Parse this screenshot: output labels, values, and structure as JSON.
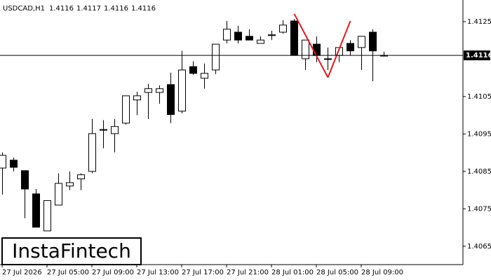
{
  "chart_data": {
    "type": "candlestick",
    "title": "USDCAD,H1",
    "categories": [
      "27 Jul 2026",
      null,
      null,
      null,
      "27 Jul 05:00",
      null,
      null,
      null,
      "27 Jul 09:00",
      null,
      null,
      null,
      "27 Jul 13:00",
      null,
      null,
      null,
      "27 Jul 17:00",
      null,
      null,
      null,
      "27 Jul 21:00",
      null,
      null,
      null,
      "28 Jul 01:00",
      null,
      null,
      null,
      "28 Jul 05:00",
      null,
      null,
      null,
      "28 Jul 09:00",
      null,
      null
    ],
    "series": {
      "open": [
        1.40859,
        1.4088,
        1.40852,
        1.4079,
        1.40691,
        1.4076,
        1.40811,
        1.4083,
        1.4085,
        1.4096,
        1.40951,
        1.40979,
        1.41041,
        1.41061,
        1.41061,
        1.41082,
        1.41011,
        1.4113,
        1.41099,
        1.41121,
        1.41201,
        1.41222,
        1.41211,
        1.41192,
        1.41213,
        1.41222,
        1.41252,
        1.41151,
        1.4119,
        1.41151,
        1.4116,
        1.41192,
        1.41181,
        1.41222,
        1.4116
      ],
      "high": [
        1.40901,
        1.40887,
        1.40852,
        1.40803,
        1.40772,
        1.40845,
        1.4085,
        1.40845,
        1.4099,
        1.40987,
        1.4099,
        1.41052,
        1.41063,
        1.41084,
        1.4108,
        1.41114,
        1.41172,
        1.41144,
        1.41138,
        1.4119,
        1.41252,
        1.41239,
        1.4123,
        1.41211,
        1.41226,
        1.41254,
        1.41257,
        1.41201,
        1.41211,
        1.41181,
        1.41181,
        1.41201,
        1.41211,
        1.4123,
        1.4117
      ],
      "low": [
        1.40788,
        1.4085,
        1.40725,
        1.40701,
        1.40691,
        1.4076,
        1.408,
        1.408,
        1.40845,
        1.40912,
        1.40901,
        1.40975,
        1.41,
        1.4099,
        1.41031,
        1.40979,
        1.41005,
        1.41108,
        1.41071,
        1.4111,
        1.41192,
        1.41192,
        1.41201,
        1.41192,
        1.41201,
        1.41218,
        1.4116,
        1.41121,
        1.41142,
        1.41121,
        1.41142,
        1.4116,
        1.41121,
        1.41091,
        1.4116
      ],
      "close": [
        1.40893,
        1.40861,
        1.40803,
        1.40701,
        1.40772,
        1.40818,
        1.4082,
        1.40841,
        1.40951,
        1.40962,
        1.4097,
        1.41052,
        1.41052,
        1.41071,
        1.41071,
        1.41002,
        1.41121,
        1.41112,
        1.41112,
        1.4119,
        1.4123,
        1.41201,
        1.41201,
        1.41201,
        1.41215,
        1.41241,
        1.4116,
        1.41201,
        1.4116,
        1.41151,
        1.41181,
        1.41172,
        1.41211,
        1.41172,
        1.4116
      ]
    },
    "up_color": "#ffffff",
    "down_color": "#000000",
    "pattern": {
      "x_index": [
        26,
        29,
        31
      ],
      "values": [
        1.41271,
        1.41101,
        1.41252
      ],
      "color": "#e8161b"
    },
    "ylim": [
      1.40601,
      1.41308
    ],
    "yticks": [
      1.4125,
      1.4105,
      1.4095,
      1.4085,
      1.4075,
      1.4065
    ]
  },
  "brand": "InstaFintech"
}
